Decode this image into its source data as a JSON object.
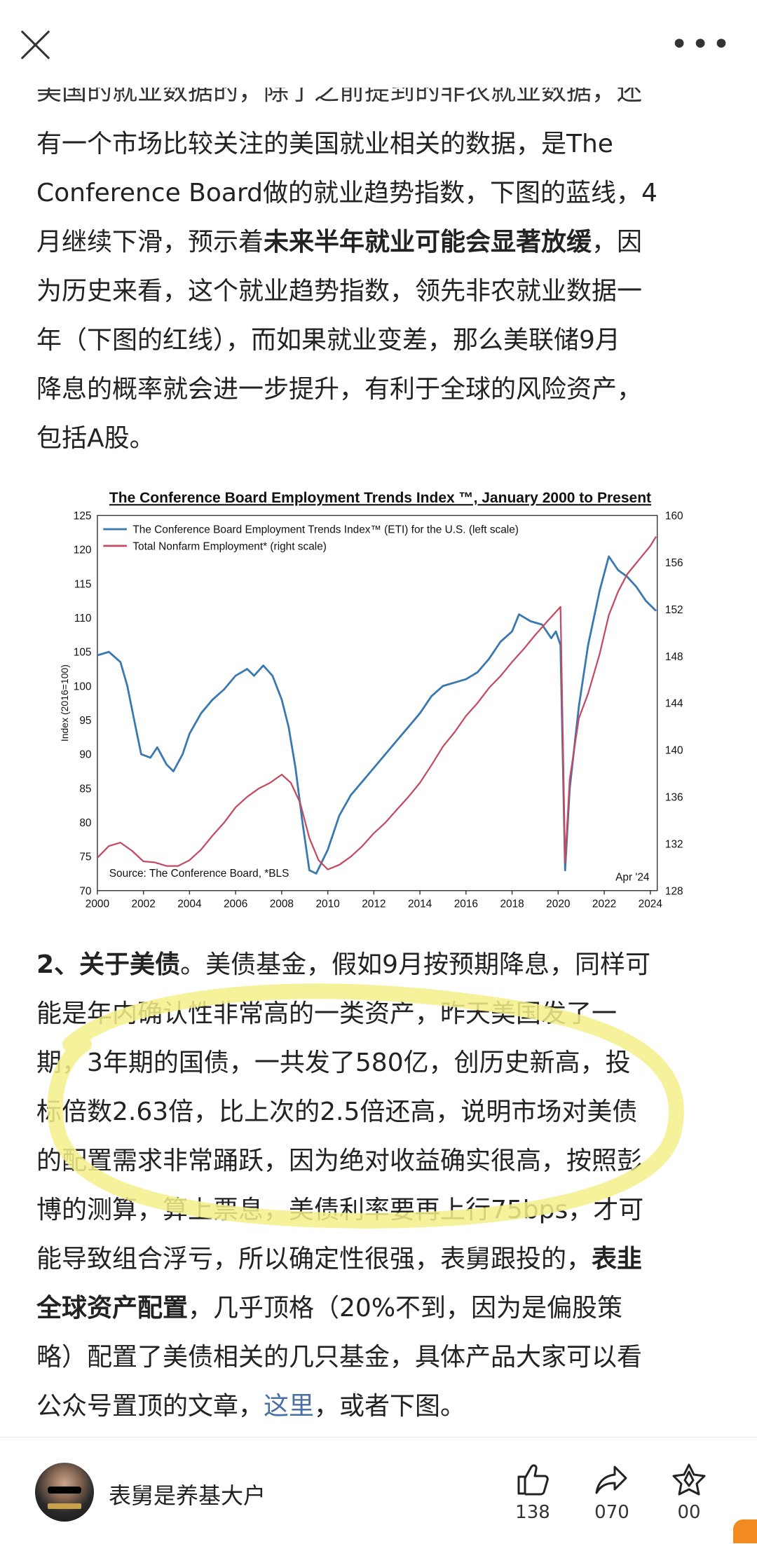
{
  "topbar": {
    "more": "•••"
  },
  "article": {
    "cutoff_line": "美国的就业数据的，除了之前提到的非农就业数据，还",
    "p1": [
      [
        {
          "t": "有一个市场比较关注的美国就业相关的数据，是The"
        }
      ],
      [
        {
          "t": "Conference Board做的就业趋势指数，下图的蓝线，4"
        }
      ],
      [
        {
          "t": "月继续下滑，预示着"
        },
        {
          "t": "未来半年就业可能会显著放缓",
          "b": true
        },
        {
          "t": "，因"
        }
      ],
      [
        {
          "t": "为历史来看，这个就业趋势指数，领先非农就业数据一"
        }
      ],
      [
        {
          "t": "年（下图的红线），而如果就业变差，那么美联储9月"
        }
      ],
      [
        {
          "t": "降息的概率就会进一步提升，有利于全球的风险资产，"
        }
      ],
      [
        {
          "t": "包括A股。"
        }
      ]
    ],
    "p2": [
      [
        {
          "t": "2、关于美债",
          "b": true
        },
        {
          "t": "。美债基金，假如9月按预期降息，同样可"
        }
      ],
      [
        {
          "t": "能是年内确认性非常高的一类资产，昨天美国发了一"
        }
      ],
      [
        {
          "t": "期，3年期的国债，一共发了580亿，创历史新高，投"
        }
      ],
      [
        {
          "t": "标倍数2.63倍，比上次的2.5倍还高，说明市场对美债"
        }
      ],
      [
        {
          "t": "的配置需求非常踊跃，因为绝对收益确实很高，按照彭"
        }
      ],
      [
        {
          "t": "博的测算，算上票息，美债利率要再上行75bps，才可"
        }
      ],
      [
        {
          "t": "能导致组合浮亏，所以确定性很强，表舅跟投的，"
        },
        {
          "t": "表韭",
          "b": true
        }
      ],
      [
        {
          "t": "全球资产配置",
          "b": true
        },
        {
          "t": "，几乎顶格（20%不到，因为是偏股策"
        }
      ],
      [
        {
          "t": "略）配置了美债相关的几只基金，具体产品大家可以看"
        }
      ],
      [
        {
          "t": "公众号置顶的文章，"
        },
        {
          "t": "这里",
          "link": true
        },
        {
          "t": "，或者下图。"
        }
      ]
    ]
  },
  "chart_data": {
    "type": "line",
    "title": "The Conference Board Employment Trends Index ™, January 2000 to Present",
    "ylabel": "Index (2016=100)",
    "xlim": [
      2000,
      2024.3
    ],
    "ylim_left": [
      70,
      125
    ],
    "ylim_right": [
      128,
      160
    ],
    "x_ticks": [
      "2000",
      "2002",
      "2004",
      "2006",
      "2008",
      "2010",
      "2012",
      "2014",
      "2016",
      "2018",
      "2020",
      "2022",
      "2024"
    ],
    "y_ticks_left": [
      70,
      75,
      80,
      85,
      90,
      95,
      100,
      105,
      110,
      115,
      120,
      125
    ],
    "y_ticks_right": [
      128,
      132,
      136,
      140,
      144,
      148,
      152,
      156,
      160
    ],
    "source": "Source: The Conference Board, *BLS",
    "date_note": "Apr '24",
    "colors": {
      "eti": "#3a78b0",
      "nfp": "#c44a60"
    },
    "series": [
      {
        "name": "The Conference Board Employment Trends Index™ (ETI) for the U.S. (left scale)",
        "axis": "left",
        "points": [
          [
            2000,
            104.5
          ],
          [
            2000.5,
            105
          ],
          [
            2001,
            103.5
          ],
          [
            2001.3,
            100
          ],
          [
            2001.6,
            95
          ],
          [
            2001.9,
            90
          ],
          [
            2002.3,
            89.5
          ],
          [
            2002.6,
            91
          ],
          [
            2003,
            88.5
          ],
          [
            2003.3,
            87.5
          ],
          [
            2003.7,
            90
          ],
          [
            2004,
            93
          ],
          [
            2004.5,
            96
          ],
          [
            2005,
            98
          ],
          [
            2005.5,
            99.5
          ],
          [
            2006,
            101.5
          ],
          [
            2006.5,
            102.5
          ],
          [
            2006.8,
            101.5
          ],
          [
            2007.2,
            103
          ],
          [
            2007.6,
            101.5
          ],
          [
            2008,
            98
          ],
          [
            2008.3,
            94
          ],
          [
            2008.6,
            88
          ],
          [
            2008.9,
            80
          ],
          [
            2009.2,
            73
          ],
          [
            2009.5,
            72.5
          ],
          [
            2010,
            76
          ],
          [
            2010.5,
            81
          ],
          [
            2011,
            84
          ],
          [
            2011.5,
            86
          ],
          [
            2012,
            88
          ],
          [
            2012.5,
            90
          ],
          [
            2013,
            92
          ],
          [
            2013.5,
            94
          ],
          [
            2014,
            96
          ],
          [
            2014.5,
            98.5
          ],
          [
            2015,
            100
          ],
          [
            2015.5,
            100.5
          ],
          [
            2016,
            101
          ],
          [
            2016.5,
            102
          ],
          [
            2017,
            104
          ],
          [
            2017.5,
            106.5
          ],
          [
            2018,
            108
          ],
          [
            2018.3,
            110.5
          ],
          [
            2018.8,
            109.5
          ],
          [
            2019.3,
            109
          ],
          [
            2019.7,
            107
          ],
          [
            2019.9,
            108
          ],
          [
            2020.1,
            106
          ],
          [
            2020.3,
            73
          ],
          [
            2020.5,
            85
          ],
          [
            2020.9,
            97
          ],
          [
            2021.3,
            106
          ],
          [
            2021.8,
            114
          ],
          [
            2022.2,
            119
          ],
          [
            2022.6,
            117
          ],
          [
            2023,
            116
          ],
          [
            2023.4,
            114.5
          ],
          [
            2023.8,
            112.5
          ],
          [
            2024.25,
            111
          ]
        ]
      },
      {
        "name": "Total Nonfarm Employment* (right scale)",
        "axis": "right",
        "points": [
          [
            2000,
            130.8
          ],
          [
            2000.5,
            131.8
          ],
          [
            2001,
            132.1
          ],
          [
            2001.5,
            131.4
          ],
          [
            2002,
            130.5
          ],
          [
            2002.5,
            130.4
          ],
          [
            2003,
            130.1
          ],
          [
            2003.5,
            130.1
          ],
          [
            2004,
            130.6
          ],
          [
            2004.5,
            131.5
          ],
          [
            2005,
            132.7
          ],
          [
            2005.5,
            133.8
          ],
          [
            2006,
            135.1
          ],
          [
            2006.5,
            136
          ],
          [
            2007,
            136.7
          ],
          [
            2007.5,
            137.2
          ],
          [
            2008,
            137.9
          ],
          [
            2008.4,
            137.2
          ],
          [
            2008.8,
            135.5
          ],
          [
            2009.2,
            132.5
          ],
          [
            2009.6,
            130.6
          ],
          [
            2010,
            129.8
          ],
          [
            2010.5,
            130.2
          ],
          [
            2011,
            130.9
          ],
          [
            2011.5,
            131.8
          ],
          [
            2012,
            132.9
          ],
          [
            2012.5,
            133.8
          ],
          [
            2013,
            134.9
          ],
          [
            2013.5,
            136
          ],
          [
            2014,
            137.2
          ],
          [
            2014.5,
            138.7
          ],
          [
            2015,
            140.3
          ],
          [
            2015.5,
            141.5
          ],
          [
            2016,
            142.9
          ],
          [
            2016.5,
            144
          ],
          [
            2017,
            145.3
          ],
          [
            2017.5,
            146.3
          ],
          [
            2018,
            147.5
          ],
          [
            2018.5,
            148.6
          ],
          [
            2019,
            149.8
          ],
          [
            2019.5,
            150.9
          ],
          [
            2020.1,
            152.2
          ],
          [
            2020.3,
            130.4
          ],
          [
            2020.5,
            137.5
          ],
          [
            2020.9,
            142.7
          ],
          [
            2021.3,
            144.8
          ],
          [
            2021.8,
            148.2
          ],
          [
            2022.2,
            151.5
          ],
          [
            2022.6,
            153.5
          ],
          [
            2023,
            155
          ],
          [
            2023.5,
            156.2
          ],
          [
            2024,
            157.4
          ],
          [
            2024.25,
            158.2
          ]
        ]
      }
    ]
  },
  "bottombar": {
    "author": "表舅是养基大户",
    "like_count": "138",
    "share_count": "070",
    "fav_count": "00"
  }
}
